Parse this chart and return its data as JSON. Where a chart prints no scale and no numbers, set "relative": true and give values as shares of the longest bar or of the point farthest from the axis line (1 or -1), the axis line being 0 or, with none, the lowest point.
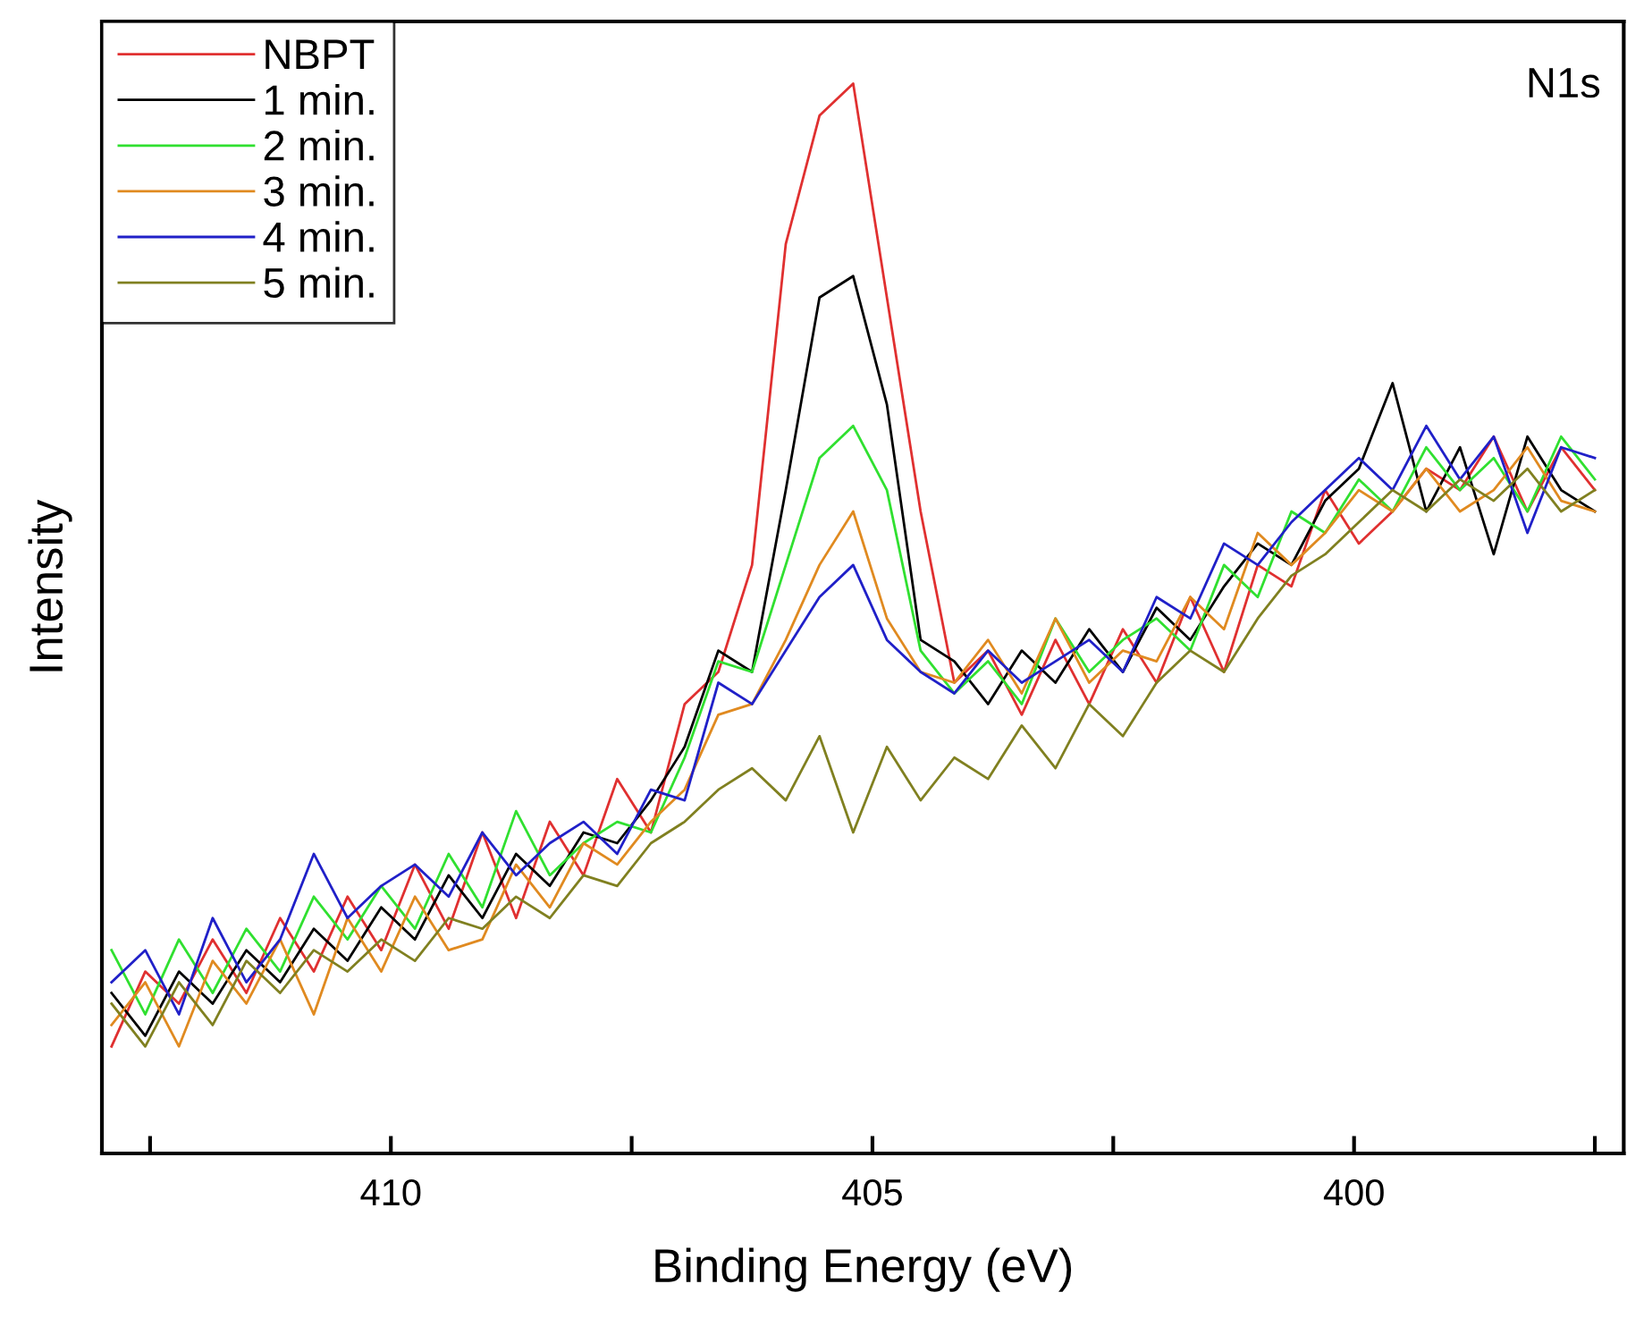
{
  "chart_data": {
    "type": "line",
    "relative": true,
    "xlabel": "Binding Energy (eV)",
    "ylabel": "Intensity",
    "annotations": [
      "N1s"
    ],
    "x": [
      412.9,
      412.55,
      412.2,
      411.85,
      411.5,
      411.15,
      410.8,
      410.45,
      410.1,
      409.75,
      409.4,
      409.05,
      408.7,
      408.35,
      408.0,
      407.65,
      407.3,
      406.95,
      406.6,
      406.25,
      405.9,
      405.55,
      405.2,
      404.85,
      404.5,
      404.15,
      403.8,
      403.45,
      403.1,
      402.75,
      402.4,
      402.05,
      401.7,
      401.35,
      401.0,
      400.65,
      400.3,
      399.95,
      399.6,
      399.25,
      398.9,
      398.55,
      398.2,
      397.85,
      397.5
    ],
    "xlim": [
      413.0,
      397.2
    ],
    "xticks": [
      {
        "value": 412.5,
        "label": null
      },
      410,
      {
        "value": 407.5,
        "label": null
      },
      405,
      {
        "value": 402.5,
        "label": null
      },
      400,
      {
        "value": 397.5,
        "label": null
      }
    ],
    "tick_labels": "x",
    "grid": false,
    "legend": "top left",
    "line_style": "solid",
    "marker": "none",
    "series": [
      {
        "name": "NBPT",
        "color": "#e03030",
        "values": [
          0.1,
          0.17,
          0.14,
          0.2,
          0.15,
          0.22,
          0.17,
          0.24,
          0.19,
          0.27,
          0.21,
          0.3,
          0.22,
          0.31,
          0.26,
          0.35,
          0.3,
          0.42,
          0.45,
          0.55,
          0.85,
          0.97,
          1.0,
          0.8,
          0.6,
          0.44,
          0.47,
          0.41,
          0.48,
          0.42,
          0.49,
          0.44,
          0.52,
          0.45,
          0.55,
          0.53,
          0.62,
          0.57,
          0.6,
          0.64,
          0.62,
          0.67,
          0.6,
          0.66,
          0.62
        ]
      },
      {
        "name": "1 min.",
        "color": "#000000",
        "values": [
          0.15,
          0.11,
          0.17,
          0.14,
          0.19,
          0.16,
          0.21,
          0.18,
          0.23,
          0.2,
          0.26,
          0.22,
          0.28,
          0.25,
          0.3,
          0.29,
          0.33,
          0.38,
          0.47,
          0.45,
          0.62,
          0.8,
          0.82,
          0.7,
          0.48,
          0.46,
          0.42,
          0.47,
          0.44,
          0.49,
          0.45,
          0.51,
          0.48,
          0.53,
          0.57,
          0.55,
          0.61,
          0.64,
          0.72,
          0.6,
          0.66,
          0.56,
          0.67,
          0.62,
          0.6
        ]
      },
      {
        "name": "2 min.",
        "color": "#30e030",
        "values": [
          0.19,
          0.13,
          0.2,
          0.15,
          0.21,
          0.17,
          0.24,
          0.2,
          0.25,
          0.21,
          0.28,
          0.23,
          0.32,
          0.26,
          0.29,
          0.31,
          0.3,
          0.37,
          0.46,
          0.45,
          0.55,
          0.65,
          0.68,
          0.62,
          0.47,
          0.43,
          0.46,
          0.42,
          0.5,
          0.45,
          0.48,
          0.5,
          0.47,
          0.55,
          0.52,
          0.6,
          0.58,
          0.63,
          0.6,
          0.66,
          0.62,
          0.65,
          0.6,
          0.67,
          0.63
        ]
      },
      {
        "name": "3 min.",
        "color": "#e08a20",
        "values": [
          0.12,
          0.16,
          0.1,
          0.18,
          0.14,
          0.2,
          0.13,
          0.22,
          0.17,
          0.24,
          0.19,
          0.2,
          0.27,
          0.23,
          0.29,
          0.27,
          0.31,
          0.34,
          0.41,
          0.42,
          0.48,
          0.55,
          0.6,
          0.5,
          0.45,
          0.44,
          0.48,
          0.43,
          0.5,
          0.44,
          0.47,
          0.46,
          0.52,
          0.49,
          0.58,
          0.55,
          0.58,
          0.62,
          0.6,
          0.64,
          0.6,
          0.62,
          0.66,
          0.61,
          0.6
        ]
      },
      {
        "name": "4 min.",
        "color": "#2020c8",
        "values": [
          0.16,
          0.19,
          0.13,
          0.22,
          0.16,
          0.2,
          0.28,
          0.22,
          0.25,
          0.27,
          0.24,
          0.3,
          0.26,
          0.29,
          0.31,
          0.28,
          0.34,
          0.33,
          0.44,
          0.42,
          0.47,
          0.52,
          0.55,
          0.48,
          0.45,
          0.43,
          0.47,
          0.44,
          0.46,
          0.48,
          0.45,
          0.52,
          0.5,
          0.57,
          0.55,
          0.59,
          0.62,
          0.65,
          0.62,
          0.68,
          0.63,
          0.67,
          0.58,
          0.66,
          0.65
        ]
      },
      {
        "name": "5 min.",
        "color": "#808020",
        "values": [
          0.14,
          0.1,
          0.16,
          0.12,
          0.18,
          0.15,
          0.19,
          0.17,
          0.2,
          0.18,
          0.22,
          0.21,
          0.24,
          0.22,
          0.26,
          0.25,
          0.29,
          0.31,
          0.34,
          0.36,
          0.33,
          0.39,
          0.3,
          0.38,
          0.33,
          0.37,
          0.35,
          0.4,
          0.36,
          0.42,
          0.39,
          0.44,
          0.47,
          0.45,
          0.5,
          0.54,
          0.56,
          0.59,
          0.62,
          0.6,
          0.63,
          0.61,
          0.64,
          0.6,
          0.62
        ]
      }
    ]
  }
}
